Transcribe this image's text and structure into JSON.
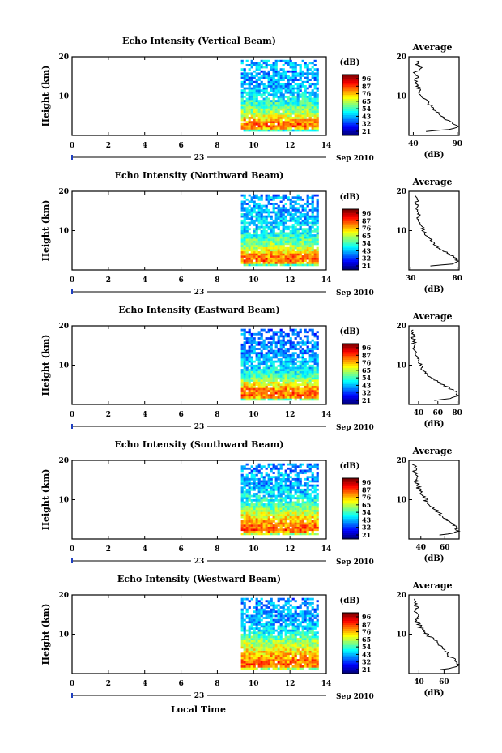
{
  "chart_data": {
    "type": "heatmap",
    "xlabel": "Local Time",
    "date_label": "Sep 2010",
    "date_day": "23",
    "x_ticks": [
      0,
      2,
      4,
      6,
      8,
      10,
      12,
      14
    ],
    "xlim": [
      0,
      14
    ],
    "y_ticks": [
      10,
      20
    ],
    "ylim": [
      0,
      20
    ],
    "ylabel": "Height (km)",
    "colorbar_unit": "(dB)",
    "avg_title": "Average",
    "avg_xlabel": "(dB)",
    "data_start_time": 9.3,
    "data_end_time": 13.5,
    "panels": [
      {
        "title": "Echo Intensity (Vertical Beam)",
        "colorbar_ticks": [
          "96",
          "87",
          "76",
          "65",
          "54",
          "43",
          "32",
          "21"
        ],
        "avg_xticks": [
          "40",
          "90"
        ],
        "avg_xlim": [
          35,
          92
        ],
        "profile_height": [
          1.0,
          1.5,
          2.0,
          2.5,
          3.0,
          3.5,
          4.0,
          5.0,
          6.0,
          7.0,
          8.0,
          9.0,
          10.0,
          11.0,
          12.0,
          13.0,
          14.0,
          15.0,
          16.0,
          17.0,
          18.0,
          19.0
        ],
        "profile_value": [
          55,
          82,
          88,
          90,
          86,
          84,
          78,
          72,
          66,
          62,
          58,
          54,
          50,
          47,
          46,
          44,
          43,
          46,
          41,
          50,
          44,
          46
        ]
      },
      {
        "title": "Echo Intensity (Northward Beam)",
        "colorbar_ticks": [
          "96",
          "87",
          "76",
          "65",
          "54",
          "43",
          "32",
          "21"
        ],
        "avg_xticks": [
          "30",
          "80"
        ],
        "avg_xlim": [
          28,
          82
        ],
        "profile_height": [
          1.0,
          1.5,
          2.0,
          2.5,
          3.0,
          3.5,
          4.0,
          5.0,
          6.0,
          7.0,
          8.0,
          9.0,
          10.0,
          11.0,
          12.0,
          13.0,
          14.0,
          15.0,
          16.0,
          17.0,
          18.0,
          19.0
        ],
        "profile_value": [
          50,
          74,
          79,
          80,
          78,
          76,
          72,
          64,
          58,
          54,
          50,
          46,
          44,
          42,
          41,
          38,
          40,
          37,
          38,
          36,
          38,
          35
        ]
      },
      {
        "title": "Echo Intensity (Eastward Beam)",
        "colorbar_ticks": [
          "96",
          "87",
          "76",
          "65",
          "54",
          "43",
          "32",
          "21"
        ],
        "avg_xticks": [
          "40",
          "60",
          "80"
        ],
        "avg_xlim": [
          30,
          82
        ],
        "profile_height": [
          1.0,
          1.5,
          2.0,
          2.5,
          3.0,
          3.5,
          4.0,
          5.0,
          6.0,
          7.0,
          8.0,
          9.0,
          10.0,
          11.0,
          12.0,
          13.0,
          14.0,
          15.0,
          16.0,
          17.0,
          18.0,
          19.0
        ],
        "profile_value": [
          55,
          74,
          79,
          80,
          79,
          77,
          73,
          66,
          58,
          52,
          48,
          44,
          42,
          40,
          38,
          37,
          36,
          35,
          36,
          34,
          35,
          33
        ]
      },
      {
        "title": "Echo Intensity (Southward Beam)",
        "colorbar_ticks": [
          "96",
          "87",
          "76",
          "65",
          "54",
          "43",
          "32",
          "21"
        ],
        "avg_xticks": [
          "40",
          "60"
        ],
        "avg_xlim": [
          30,
          72
        ],
        "profile_height": [
          1.0,
          1.5,
          2.0,
          2.5,
          3.0,
          3.5,
          4.0,
          5.0,
          6.0,
          7.0,
          8.0,
          9.0,
          10.0,
          11.0,
          12.0,
          13.0,
          14.0,
          15.0,
          16.0,
          17.0,
          18.0,
          19.0
        ],
        "profile_value": [
          55,
          68,
          71,
          70,
          69,
          68,
          66,
          62,
          58,
          54,
          50,
          46,
          44,
          42,
          40,
          38,
          37,
          36,
          38,
          35,
          36,
          34
        ]
      },
      {
        "title": "Echo Intensity (Westward Beam)",
        "colorbar_ticks": [
          "96",
          "87",
          "76",
          "65",
          "54",
          "43",
          "32",
          "21"
        ],
        "avg_xticks": [
          "40",
          "60"
        ],
        "avg_xlim": [
          32,
          72
        ],
        "profile_height": [
          1.0,
          1.5,
          2.0,
          2.5,
          3.0,
          3.5,
          4.0,
          5.0,
          6.0,
          7.0,
          8.0,
          9.0,
          10.0,
          11.0,
          12.0,
          13.0,
          14.0,
          15.0,
          16.0,
          17.0,
          18.0,
          19.0
        ],
        "profile_value": [
          56,
          68,
          71,
          70,
          69,
          68,
          66,
          63,
          60,
          57,
          54,
          50,
          46,
          43,
          41,
          39,
          38,
          40,
          37,
          39,
          36,
          37
        ]
      }
    ]
  }
}
